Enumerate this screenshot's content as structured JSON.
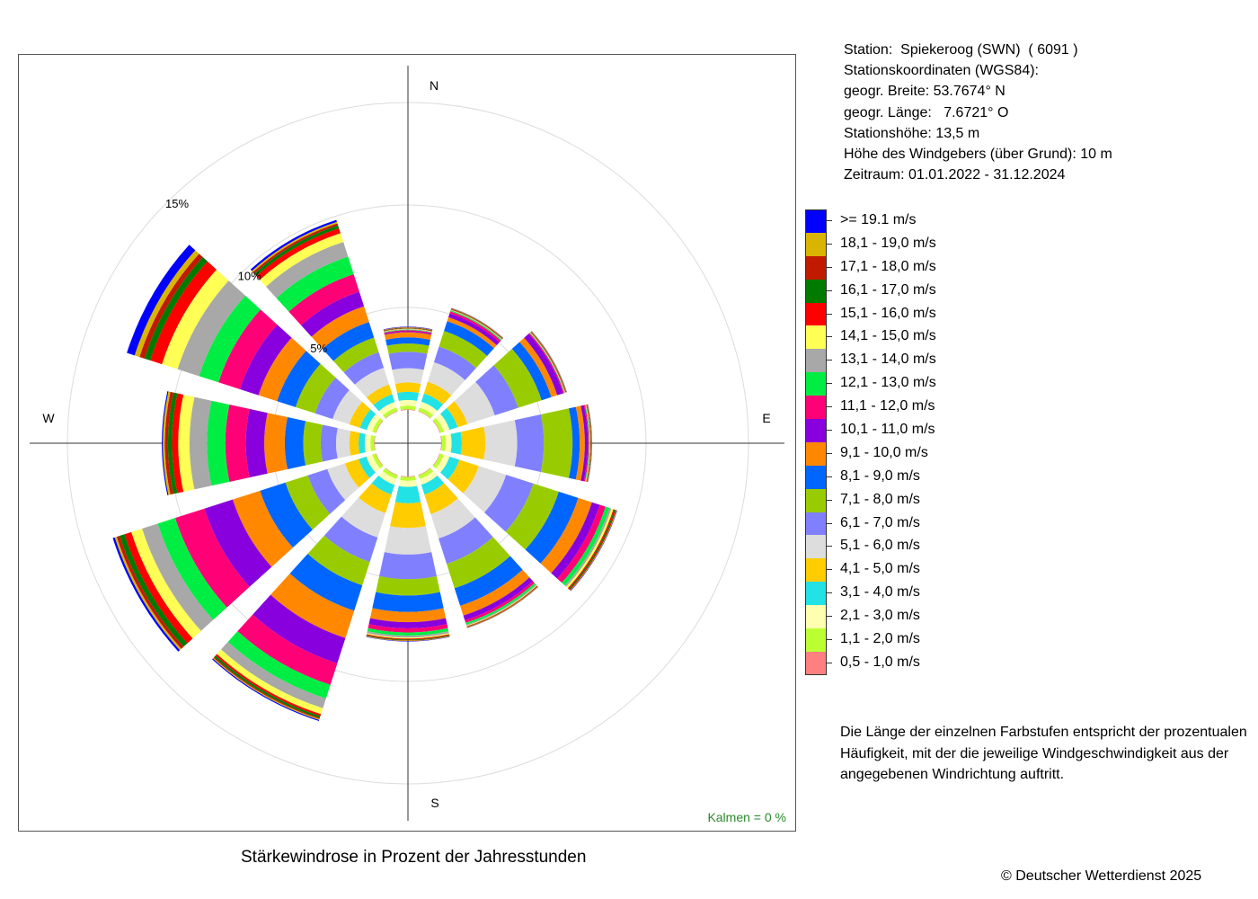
{
  "station": {
    "lines": [
      "Station:  Spiekeroog (SWN)  ( 6091 )",
      "Stationskoordinaten (WGS84):",
      "geogr. Breite: 53.7674° N",
      "geogr. Länge:   7.6721° O",
      "Stationshöhe: 13,5 m",
      "Höhe des Windgebers (über Grund): 10 m",
      "Zeitraum: 01.01.2022 - 31.12.2024"
    ]
  },
  "legend": [
    {
      "label": ">= 19.1 m/s",
      "color": "#0000ff"
    },
    {
      "label": "18,1 - 19,0 m/s",
      "color": "#d9b400"
    },
    {
      "label": "17,1 - 18,0 m/s",
      "color": "#c01a00"
    },
    {
      "label": "16,1 - 17,0 m/s",
      "color": "#007a00"
    },
    {
      "label": "15,1 - 16,0 m/s",
      "color": "#ff0000"
    },
    {
      "label": "14,1 - 15,0 m/s",
      "color": "#ffff55"
    },
    {
      "label": "13,1 - 14,0 m/s",
      "color": "#a8a8a8"
    },
    {
      "label": "12,1 - 13,0 m/s",
      "color": "#00ee44"
    },
    {
      "label": "11,1 - 12,0 m/s",
      "color": "#ff0077"
    },
    {
      "label": "10,1 - 11,0 m/s",
      "color": "#8800dd"
    },
    {
      "label": "9,1 - 10,0 m/s",
      "color": "#ff8800"
    },
    {
      "label": "8,1 - 9,0 m/s",
      "color": "#0066ff"
    },
    {
      "label": "7,1 - 8,0 m/s",
      "color": "#99cc00"
    },
    {
      "label": "6,1 - 7,0 m/s",
      "color": "#8080ff"
    },
    {
      "label": "5,1 - 6,0 m/s",
      "color": "#dddddd"
    },
    {
      "label": "4,1 - 5,0 m/s",
      "color": "#ffcc00"
    },
    {
      "label": "3,1 - 4,0 m/s",
      "color": "#22e2e6"
    },
    {
      "label": "2,1 - 3,0 m/s",
      "color": "#ffffb0"
    },
    {
      "label": "1,1 - 2,0 m/s",
      "color": "#bbff33"
    },
    {
      "label": "0,5 - 1,0 m/s",
      "color": "#ff8080"
    }
  ],
  "explanation": "Die Länge der einzelnen Farbstufen entspricht der prozentualen Häufigkeit, mit der die jeweilige Windgeschwindigkeit aus der angegebenen Windrichtung auftritt.",
  "caption": "Stärkewindrose in Prozent der Jahresstunden",
  "copyright": "© Deutscher Wetterdienst  2025",
  "calm_text": "Kalmen  =  0 %",
  "chart_data": {
    "type": "polar-stacked-bar",
    "title": "Stärkewindrose in Prozent der Jahresstunden",
    "unit": "%",
    "rings": [
      5,
      10,
      15
    ],
    "ring_labels": [
      "5%",
      "10%",
      "15%"
    ],
    "compass": {
      "N": "N",
      "E": "E",
      "S": "S",
      "W": "W"
    },
    "calm_percent": 0,
    "speed_classes": [
      "0,5 - 1,0 m/s",
      "1,1 - 2,0 m/s",
      "2,1 - 3,0 m/s",
      "3,1 - 4,0 m/s",
      "4,1 - 5,0 m/s",
      "5,1 - 6,0 m/s",
      "6,1 - 7,0 m/s",
      "7,1 - 8,0 m/s",
      "8,1 - 9,0 m/s",
      "9,1 - 10,0 m/s",
      "10,1 - 11,0 m/s",
      "11,1 - 12,0 m/s",
      "12,1 - 13,0 m/s",
      "13,1 - 14,0 m/s",
      "14,1 - 15,0 m/s",
      "15,1 - 16,0 m/s",
      "16,1 - 17,0 m/s",
      "17,1 - 18,0 m/s",
      "18,1 - 19,0 m/s",
      ">= 19.1 m/s"
    ],
    "sectors": [
      {
        "direction_deg": 0,
        "values": [
          0.03,
          0.18,
          0.28,
          0.4,
          0.45,
          0.7,
          0.8,
          0.4,
          0.3,
          0.25,
          0.05,
          0.05,
          0.03,
          0.02,
          0.02,
          0.02,
          0.02,
          0.02,
          0.02,
          0.02
        ]
      },
      {
        "direction_deg": 30,
        "values": [
          0.03,
          0.18,
          0.3,
          0.42,
          0.6,
          1.0,
          0.8,
          0.8,
          0.5,
          0.2,
          0.2,
          0.1,
          0.05,
          0.02,
          0.02,
          0.02,
          0.02,
          0.02,
          0.02,
          0.01
        ]
      },
      {
        "direction_deg": 60,
        "values": [
          0.03,
          0.18,
          0.3,
          0.42,
          0.5,
          1.4,
          1.2,
          1.2,
          0.5,
          0.3,
          0.3,
          0.05,
          0.02,
          0.02,
          0.02,
          0.02,
          0.02,
          0.02,
          0.02,
          0.01
        ]
      },
      {
        "direction_deg": 90,
        "values": [
          0.03,
          0.18,
          0.3,
          0.5,
          1.15,
          1.55,
          1.3,
          1.4,
          0.35,
          0.25,
          0.15,
          0.05,
          0.03,
          0.02,
          0.02,
          0.02,
          0.02,
          0.02,
          0.02,
          0.01
        ]
      },
      {
        "direction_deg": 120,
        "values": [
          0.03,
          0.18,
          0.3,
          0.5,
          1.0,
          1.4,
          1.4,
          1.3,
          1.0,
          0.7,
          0.4,
          0.3,
          0.2,
          0.1,
          0.1,
          0.05,
          0.05,
          0.05,
          0.03,
          0.02
        ]
      },
      {
        "direction_deg": 150,
        "values": [
          0.03,
          0.18,
          0.3,
          0.5,
          1.0,
          1.25,
          1.3,
          1.25,
          0.9,
          0.5,
          0.25,
          0.12,
          0.1,
          0.05,
          0.03,
          0.02,
          0.02,
          0.02,
          0.02,
          0.01
        ]
      },
      {
        "direction_deg": 180,
        "values": [
          0.03,
          0.18,
          0.3,
          0.8,
          1.2,
          1.3,
          1.2,
          0.8,
          0.8,
          0.5,
          0.3,
          0.2,
          0.15,
          0.1,
          0.05,
          0.05,
          0.03,
          0.02,
          0.02,
          0.02
        ]
      },
      {
        "direction_deg": 210,
        "values": [
          0.03,
          0.18,
          0.3,
          0.5,
          0.95,
          1.25,
          1.25,
          1.2,
          1.3,
          1.4,
          1.3,
          1.1,
          0.7,
          0.5,
          0.3,
          0.1,
          0.1,
          0.05,
          0.05,
          0.05
        ]
      },
      {
        "direction_deg": 240,
        "values": [
          0.03,
          0.18,
          0.3,
          0.4,
          0.7,
          0.9,
          1.0,
          1.15,
          1.3,
          1.4,
          1.45,
          1.5,
          0.9,
          0.8,
          0.55,
          0.35,
          0.25,
          0.15,
          0.1,
          0.1
        ]
      },
      {
        "direction_deg": 270,
        "values": [
          0.03,
          0.18,
          0.28,
          0.3,
          0.45,
          0.65,
          0.75,
          0.85,
          0.9,
          1.0,
          0.9,
          1.0,
          0.9,
          0.85,
          0.55,
          0.3,
          0.2,
          0.15,
          0.1,
          0.05
        ]
      },
      {
        "direction_deg": 300,
        "values": [
          0.03,
          0.18,
          0.28,
          0.35,
          0.55,
          0.85,
          0.9,
          1.0,
          0.95,
          0.95,
          0.95,
          1.1,
          1.0,
          1.1,
          0.8,
          0.6,
          0.3,
          0.25,
          0.25,
          0.4
        ]
      },
      {
        "direction_deg": 330,
        "values": [
          0.03,
          0.18,
          0.28,
          0.4,
          0.5,
          0.85,
          0.8,
          0.75,
          0.8,
          0.8,
          0.75,
          0.9,
          0.9,
          0.75,
          0.45,
          0.25,
          0.15,
          0.1,
          0.08,
          0.1
        ]
      }
    ]
  }
}
